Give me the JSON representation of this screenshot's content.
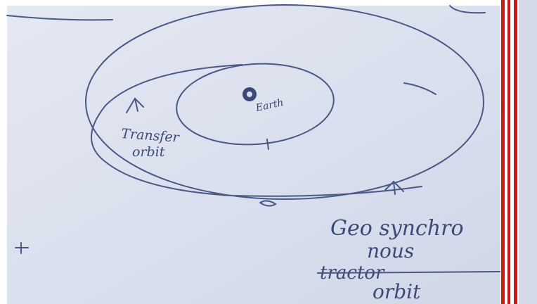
{
  "diagram": {
    "earth_label": "Earth",
    "transfer_label": [
      "Transfer",
      "orbit"
    ],
    "geo_label": [
      "Geo synchro",
      "nous"
    ],
    "struck_word": "tractor",
    "orbit_word": "orbit"
  }
}
